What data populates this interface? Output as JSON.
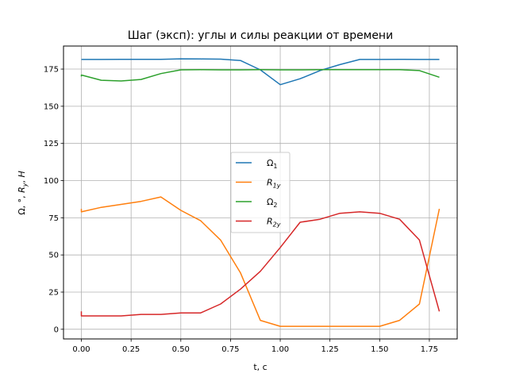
{
  "chart_data": {
    "type": "line",
    "title": "Шаг (эксп): углы и силы реакции от времени",
    "xlabel": "t, c",
    "ylabel": "Ω, °, R_y, H",
    "xlim": [
      -0.09,
      1.89
    ],
    "ylim": [
      -6.5,
      190.5
    ],
    "xticks": [
      0.0,
      0.25,
      0.5,
      0.75,
      1.0,
      1.25,
      1.5,
      1.75
    ],
    "xtick_labels": [
      "0.00",
      "0.25",
      "0.50",
      "0.75",
      "1.00",
      "1.25",
      "1.50",
      "1.75"
    ],
    "yticks": [
      0,
      25,
      50,
      75,
      100,
      125,
      150,
      175
    ],
    "ytick_labels": [
      "0",
      "25",
      "50",
      "75",
      "100",
      "125",
      "150",
      "175"
    ],
    "grid": true,
    "legend_position": "center",
    "series": [
      {
        "name": "Ω₁",
        "label_main": "Ω",
        "label_sub": "1",
        "color": "#1f77b4",
        "x": [
          0.0,
          0.1,
          0.2,
          0.3,
          0.4,
          0.5,
          0.6,
          0.7,
          0.8,
          0.9,
          1.0,
          1.1,
          1.2,
          1.3,
          1.4,
          1.5,
          1.6,
          1.7,
          1.8
        ],
        "values": [
          181.5,
          181.5,
          181.6,
          181.6,
          181.6,
          181.9,
          181.8,
          181.7,
          180.8,
          174.5,
          164.5,
          168.5,
          174.0,
          178.0,
          181.5,
          181.5,
          181.6,
          181.5,
          181.5
        ]
      },
      {
        "name": "R₁y",
        "label_main": "R",
        "label_sub": "1y",
        "color": "#ff7f0e",
        "x": [
          0.0,
          0.0,
          0.1,
          0.2,
          0.3,
          0.4,
          0.5,
          0.6,
          0.7,
          0.8,
          0.9,
          1.0,
          1.1,
          1.2,
          1.3,
          1.4,
          1.5,
          1.6,
          1.7,
          1.8
        ],
        "values": [
          81,
          79,
          82,
          84,
          86,
          89,
          80,
          73,
          60,
          38,
          6,
          2,
          2,
          2,
          2,
          2,
          2,
          6,
          17,
          81
        ]
      },
      {
        "name": "Ω₂",
        "label_main": "Ω",
        "label_sub": "2",
        "color": "#2ca02c",
        "x": [
          0.0,
          0.0,
          0.1,
          0.2,
          0.3,
          0.4,
          0.5,
          0.6,
          0.7,
          0.8,
          0.9,
          1.0,
          1.1,
          1.2,
          1.3,
          1.4,
          1.5,
          1.6,
          1.7,
          1.8
        ],
        "values": [
          170,
          171,
          167.5,
          167,
          168,
          172,
          174.5,
          174.6,
          174.5,
          174.5,
          174.6,
          174.5,
          174.5,
          174.6,
          174.6,
          174.6,
          174.6,
          174.6,
          174,
          169.5
        ]
      },
      {
        "name": "R₂y",
        "label_main": "R",
        "label_sub": "2y",
        "color": "#d62728",
        "x": [
          0.0,
          0.0,
          0.1,
          0.2,
          0.3,
          0.4,
          0.5,
          0.6,
          0.7,
          0.8,
          0.9,
          1.0,
          1.1,
          1.2,
          1.3,
          1.4,
          1.5,
          1.6,
          1.7,
          1.8
        ],
        "values": [
          12,
          9,
          9,
          9,
          10,
          10,
          11,
          11,
          17,
          27,
          39,
          55,
          72,
          74,
          78,
          79,
          78,
          74,
          60,
          12
        ]
      }
    ]
  }
}
